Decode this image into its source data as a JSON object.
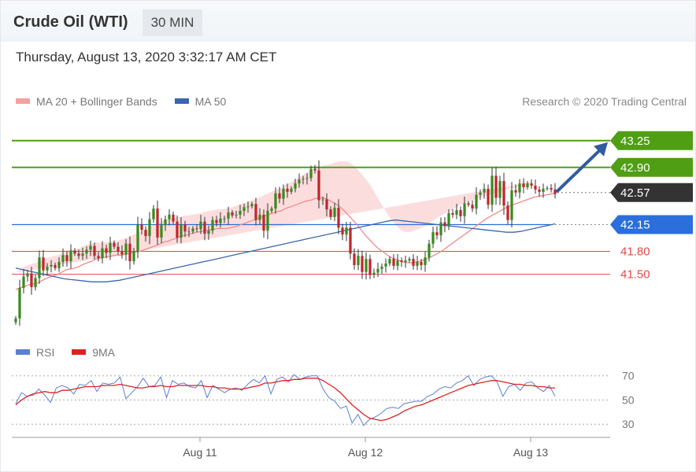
{
  "header": {
    "title": "Crude Oil (WTI)",
    "timeframe": "30 MIN",
    "datetime": "Thursday, August 13, 2020 3:32:17 AM CET"
  },
  "legend": {
    "ma20_label": "MA 20 + Bollinger Bands",
    "ma20_color": "#f4a0a0",
    "ma50_label": "MA 50",
    "ma50_color": "#3a67ad",
    "credit": "Research © 2020 Trading Central"
  },
  "rsi_legend": {
    "rsi_label": "RSI",
    "rsi_color": "#5b7fd4",
    "ma9_label": "9MA",
    "ma9_color": "#e02020"
  },
  "chart_data": [
    {
      "type": "candlestick",
      "title": "",
      "ylim": [
        40.64,
        43.65
      ],
      "x_ticks": [
        "Aug 11",
        "Aug 12",
        "Aug 13"
      ],
      "close_series": [
        40.92,
        41.32,
        41.47,
        41.51,
        41.33,
        41.45,
        41.72,
        41.55,
        41.6,
        41.62,
        41.58,
        41.66,
        41.75,
        41.67,
        41.81,
        41.77,
        41.74,
        41.77,
        41.82,
        41.87,
        41.74,
        41.71,
        41.84,
        41.78,
        41.91,
        41.86,
        41.8,
        41.76,
        41.9,
        41.67,
        41.8,
        42.15,
        42.08,
        42.0,
        42.22,
        42.36,
        41.98,
        42.14,
        42.22,
        42.28,
        42.19,
        41.98,
        42.15,
        42.06,
        42.06,
        42.1,
        42.09,
        42.19,
        42.03,
        42.07,
        42.21,
        42.17,
        42.23,
        42.23,
        42.31,
        42.27,
        42.28,
        42.33,
        42.38,
        42.39,
        42.42,
        42.21,
        42.28,
        42.07,
        42.33,
        42.36,
        42.56,
        42.49,
        42.62,
        42.58,
        42.62,
        42.69,
        42.74,
        42.75,
        42.76,
        42.88,
        42.86,
        42.47,
        42.48,
        42.35,
        42.25,
        42.37,
        42.11,
        42.02,
        42.11,
        41.77,
        41.62,
        41.74,
        41.53,
        41.7,
        41.49,
        41.52,
        41.57,
        41.6,
        41.64,
        41.7,
        41.61,
        41.68,
        41.66,
        41.68,
        41.7,
        41.61,
        41.66,
        41.62,
        41.72,
        41.9,
        42.05,
        42.01,
        42.18,
        42.13,
        42.3,
        42.28,
        42.34,
        42.26,
        42.43,
        42.41,
        42.36,
        42.54,
        42.57,
        42.62,
        42.41,
        42.79,
        42.5,
        42.72,
        42.4,
        42.21,
        42.6,
        42.57,
        42.69,
        42.64,
        42.69,
        42.66,
        42.61,
        42.58,
        42.62,
        42.63,
        42.61,
        42.55
      ],
      "ma20": [
        41.3,
        41.32,
        41.34,
        41.36,
        41.37,
        41.38,
        41.41,
        41.44,
        41.46,
        41.48,
        41.5,
        41.53,
        41.56,
        41.57,
        41.58,
        41.6,
        41.63,
        41.65,
        41.67,
        41.7,
        41.71,
        41.72,
        41.73,
        41.74,
        41.75,
        41.75,
        41.76,
        41.77,
        41.79,
        41.79,
        41.81,
        41.83,
        41.85,
        41.87,
        41.89,
        41.92,
        41.93,
        41.95,
        41.97,
        41.99,
        42.01,
        42.02,
        42.04,
        42.05,
        42.06,
        42.07,
        42.08,
        42.09,
        42.1,
        42.1,
        42.1,
        42.11,
        42.12,
        42.14,
        42.16,
        42.18,
        42.2,
        42.22,
        42.24,
        42.26,
        42.28,
        42.3,
        42.32,
        42.33,
        42.36,
        42.38,
        42.4,
        42.42,
        42.44,
        42.46,
        42.47,
        42.49,
        42.5,
        42.5,
        42.48,
        42.45,
        42.42,
        42.38,
        42.33,
        42.27,
        42.21,
        42.15,
        42.08,
        42.01,
        41.95,
        41.89,
        41.84,
        41.8,
        41.76,
        41.72,
        41.7,
        41.68,
        41.66,
        41.65,
        41.65,
        41.66,
        41.67,
        41.69,
        41.71,
        41.74,
        41.77,
        41.8,
        41.84,
        41.88,
        41.92,
        41.96,
        42.0,
        42.04,
        42.08,
        42.12,
        42.16,
        42.2,
        42.24,
        42.27,
        42.3,
        42.33,
        42.36,
        42.39,
        42.41,
        42.43,
        42.45,
        42.47,
        42.49,
        42.51,
        42.52,
        42.53,
        42.54,
        42.55,
        42.56
      ],
      "bb_half_width": [
        0.22,
        0.24,
        0.26,
        0.26,
        0.27,
        0.27,
        0.27,
        0.27,
        0.26,
        0.26,
        0.25,
        0.25,
        0.25,
        0.25,
        0.24,
        0.24,
        0.24,
        0.24,
        0.23,
        0.22,
        0.2,
        0.2,
        0.19,
        0.19,
        0.19,
        0.2,
        0.21,
        0.22,
        0.23,
        0.25,
        0.26,
        0.27,
        0.28,
        0.28,
        0.28,
        0.29,
        0.29,
        0.28,
        0.27,
        0.26,
        0.26,
        0.25,
        0.24,
        0.24,
        0.24,
        0.25,
        0.25,
        0.25,
        0.25,
        0.25,
        0.26,
        0.26,
        0.27,
        0.27,
        0.27,
        0.27,
        0.27,
        0.27,
        0.27,
        0.28,
        0.28,
        0.29,
        0.29,
        0.3,
        0.31,
        0.32,
        0.33,
        0.34,
        0.36,
        0.37,
        0.38,
        0.39,
        0.4,
        0.42,
        0.45,
        0.5,
        0.55,
        0.6,
        0.65,
        0.7,
        0.72,
        0.73,
        0.74,
        0.74,
        0.73,
        0.7,
        0.65,
        0.6,
        0.55,
        0.5,
        0.46,
        0.42,
        0.4,
        0.4,
        0.41,
        0.42,
        0.43,
        0.44,
        0.45,
        0.46,
        0.47,
        0.47,
        0.46,
        0.45,
        0.44,
        0.43,
        0.42,
        0.4,
        0.38,
        0.36,
        0.34,
        0.32,
        0.3,
        0.28,
        0.26,
        0.25,
        0.24,
        0.23,
        0.22,
        0.21,
        0.2,
        0.2,
        0.2,
        0.2,
        0.2
      ],
      "ma50": [
        41.58,
        41.56,
        41.54,
        41.52,
        41.5,
        41.48,
        41.46,
        41.44,
        41.43,
        41.42,
        41.41,
        41.4,
        41.4,
        41.4,
        41.41,
        41.42,
        41.44,
        41.46,
        41.48,
        41.5,
        41.52,
        41.54,
        41.56,
        41.58,
        41.6,
        41.62,
        41.64,
        41.66,
        41.68,
        41.7,
        41.72,
        41.74,
        41.76,
        41.78,
        41.8,
        41.82,
        41.84,
        41.86,
        41.88,
        41.9,
        41.92,
        41.94,
        41.96,
        41.98,
        42.0,
        42.02,
        42.04,
        42.06,
        42.08,
        42.1,
        42.12,
        42.14,
        42.16,
        42.18,
        42.2,
        42.21,
        42.2,
        42.19,
        42.18,
        42.17,
        42.16,
        42.15,
        42.14,
        42.13,
        42.12,
        42.11,
        42.1,
        42.09,
        42.08,
        42.07,
        42.06,
        42.05,
        42.05,
        42.06,
        42.08,
        42.1,
        42.12,
        42.14,
        42.16
      ],
      "levels": [
        {
          "value": 43.25,
          "label": "43.25",
          "color": "#4f9e13",
          "style": "green"
        },
        {
          "value": 42.9,
          "label": "42.90",
          "color": "#4f9e13",
          "style": "green"
        },
        {
          "value": 42.57,
          "label": "42.57",
          "color": "#333333",
          "style": "current"
        },
        {
          "value": 42.15,
          "label": "42.15",
          "color": "#2a6fdb",
          "style": "blue"
        },
        {
          "value": 41.8,
          "label": "41.80",
          "color": "#e24a4a",
          "style": "red"
        },
        {
          "value": 41.5,
          "label": "41.50",
          "color": "#e24a4a",
          "style": "red"
        }
      ],
      "projection": {
        "from": 42.57,
        "to": 43.25
      }
    },
    {
      "type": "line",
      "title": "",
      "ylim": [
        23,
        75
      ],
      "y_ticks": [
        70,
        50,
        30
      ],
      "rsi": [
        47,
        56,
        53,
        54,
        59,
        54,
        48,
        60,
        62,
        60,
        55,
        63,
        62,
        66,
        57,
        64,
        63,
        64,
        69,
        51,
        56,
        61,
        68,
        61,
        62,
        69,
        52,
        66,
        63,
        64,
        61,
        60,
        66,
        52,
        62,
        59,
        56,
        59,
        60,
        58,
        63,
        67,
        64,
        70,
        55,
        67,
        69,
        65,
        71,
        67,
        69,
        70,
        70,
        59,
        52,
        49,
        43,
        45,
        31,
        38,
        29,
        34,
        36,
        39,
        43,
        44,
        43,
        47,
        48,
        49,
        49,
        53,
        55,
        59,
        61,
        60,
        64,
        66,
        70,
        62,
        67,
        69,
        70,
        65,
        53,
        61,
        63,
        58,
        64,
        65,
        60,
        57,
        62,
        53
      ],
      "ma9": [
        46,
        50,
        53,
        55,
        56,
        57,
        56,
        56,
        58,
        58,
        59,
        60,
        61,
        61,
        61,
        62,
        62,
        62,
        63,
        62,
        61,
        60,
        60,
        61,
        61,
        62,
        61,
        61,
        62,
        62,
        62,
        62,
        62,
        61,
        61,
        60,
        60,
        59,
        59,
        59,
        60,
        61,
        62,
        64,
        64,
        65,
        66,
        66,
        67,
        67,
        68,
        68,
        68,
        66,
        63,
        60,
        56,
        51,
        46,
        42,
        38,
        35,
        34,
        33,
        34,
        36,
        38,
        41,
        43,
        45,
        46,
        48,
        50,
        52,
        54,
        56,
        58,
        60,
        62,
        63,
        64,
        65,
        66,
        66,
        65,
        64,
        63,
        63,
        62,
        62,
        61,
        61,
        60,
        60
      ]
    }
  ]
}
